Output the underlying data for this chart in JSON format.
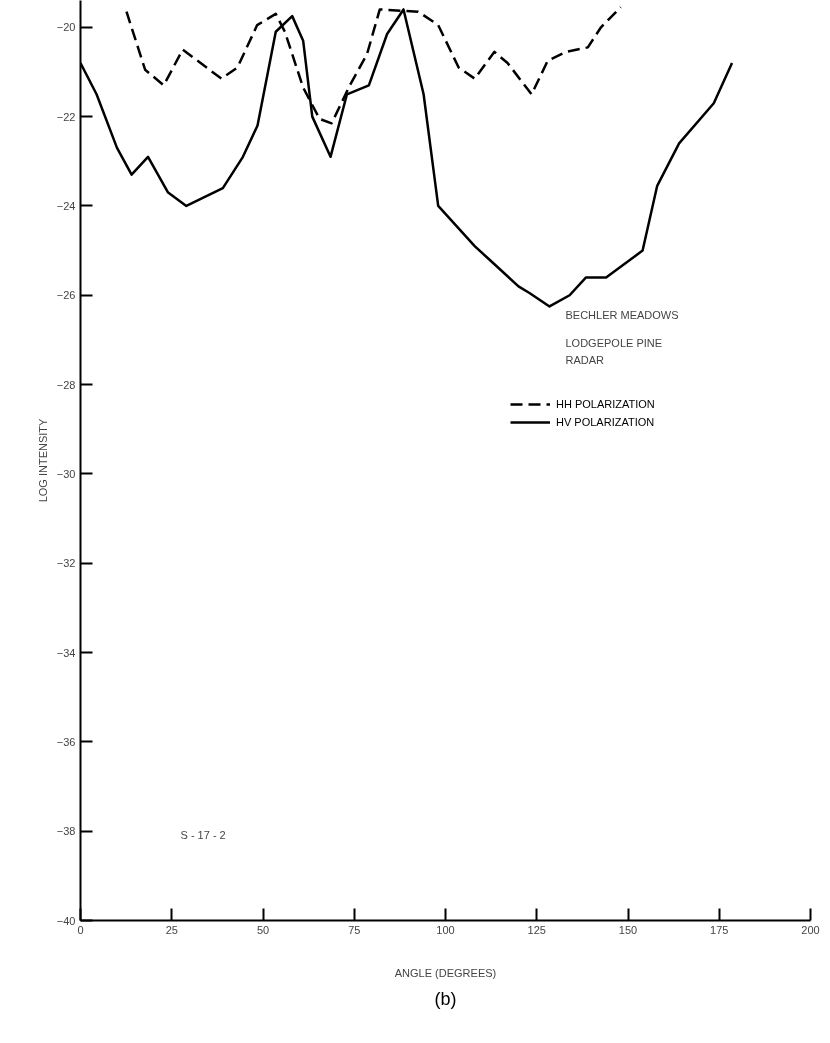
{
  "chart_data": {
    "type": "line",
    "xlabel": "ANGLE (DEGREES)",
    "ylabel": "LOG INTENSITY",
    "annotations": [
      "BECHLER MEADOWS",
      "LODGEPOLE PINE",
      "RADAR",
      "S - 17 - 2",
      "(b)"
    ],
    "xlim": [
      0,
      200
    ],
    "xticks": [
      0,
      25,
      50,
      75,
      100,
      125,
      150,
      175,
      200
    ],
    "ylim": [
      -40,
      -19.4
    ],
    "yticks": [
      -40,
      -38,
      -36,
      -34,
      -32,
      -30,
      -28,
      -26,
      -24,
      -22,
      -20
    ],
    "grid": false,
    "legend": "right",
    "marker": "none",
    "series": [
      {
        "name": "HH POLARIZATION",
        "color": "#000000",
        "line_style": "dashed",
        "x": [
          12.6,
          17.7,
          22.8,
          28,
          38.6,
          43,
          48.4,
          53.5,
          56,
          61,
          65.5,
          68.8,
          73.8,
          78.5,
          82,
          92.5,
          98,
          103.6,
          108,
          113.4,
          117,
          123.6,
          128,
          133,
          139,
          142.6,
          148
        ],
        "values": [
          -19.65,
          -20.95,
          -21.3,
          -20.5,
          -21.15,
          -20.9,
          -19.95,
          -19.7,
          -20.1,
          -21.35,
          -22.05,
          -22.15,
          -21.3,
          -20.6,
          -19.6,
          -19.65,
          -19.95,
          -20.9,
          -21.15,
          -20.55,
          -20.8,
          -21.5,
          -20.75,
          -20.55,
          -20.45,
          -20.0,
          -19.55
        ]
      },
      {
        "name": "HV POLARIZATION",
        "color": "#000000",
        "line_style": "solid",
        "x": [
          0,
          4.4,
          10,
          14,
          18.5,
          24,
          29,
          39,
          44.5,
          48.5,
          53.5,
          58,
          61,
          63.5,
          68.5,
          73,
          79,
          84,
          88.5,
          94,
          98,
          108,
          112,
          120,
          123,
          128.5,
          134,
          138.5,
          144,
          154,
          158,
          164,
          173.5,
          178.5
        ],
        "values": [
          -20.8,
          -21.5,
          -22.7,
          -23.3,
          -22.9,
          -23.7,
          -24.0,
          -23.6,
          -22.9,
          -22.2,
          -20.1,
          -19.75,
          -20.3,
          -22.0,
          -22.9,
          -21.5,
          -21.3,
          -20.15,
          -19.6,
          -21.5,
          -24.0,
          -24.9,
          -25.2,
          -25.8,
          -25.95,
          -26.25,
          -26.0,
          -25.6,
          -25.6,
          -25.0,
          -23.55,
          -22.6,
          -21.7,
          -20.8
        ]
      }
    ]
  }
}
